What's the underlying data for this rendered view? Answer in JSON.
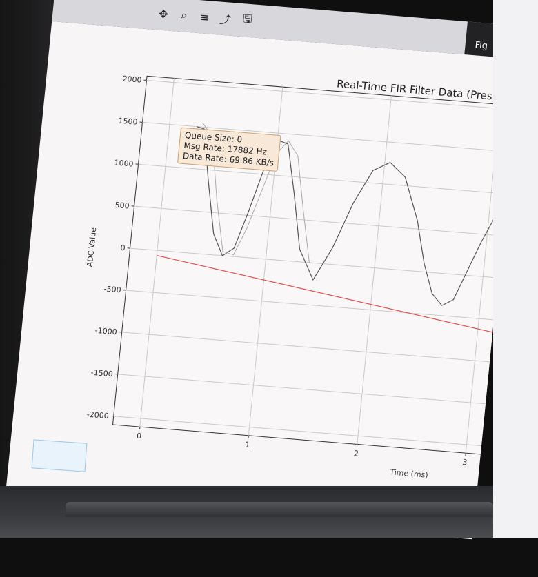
{
  "window": {
    "figure_label": "Fig",
    "toolbar_icons": [
      "pan-icon",
      "zoom-icon",
      "configure-icon",
      "edit-axis-icon",
      "save-icon"
    ]
  },
  "info_box": {
    "queue_size": "Queue Size: 0",
    "msg_rate": "Msg Rate: 17882 Hz",
    "data_rate": "Data Rate: 69.86 KB/s"
  },
  "taskbar_tag": {
    "text": ""
  },
  "chart_data": {
    "type": "line",
    "title": "Real-Time FIR Filter Data (Pres",
    "xlabel": "Time (ms)",
    "ylabel": "ADC Value",
    "xlim": [
      -0.25,
      3.2
    ],
    "ylim": [
      -2100,
      2050
    ],
    "x_ticks": [
      0,
      1,
      2,
      3
    ],
    "y_ticks": [
      2000,
      1500,
      1000,
      500,
      0,
      -500,
      -1000,
      -1500,
      -2000
    ],
    "grid": true,
    "series": [
      {
        "color": "#555555",
        "x": [
          0.25,
          0.32,
          0.4,
          0.5,
          0.6,
          0.7,
          0.8,
          0.9,
          1.0,
          1.1,
          1.2,
          1.3,
          1.45,
          1.6,
          1.75,
          1.9,
          2.05,
          2.2,
          2.35,
          2.45,
          2.55,
          2.65,
          2.75,
          2.85,
          2.95,
          3.05,
          3.15
        ],
        "y": [
          1500,
          1480,
          900,
          250,
          0,
          100,
          550,
          1050,
          1420,
          1380,
          800,
          150,
          -200,
          200,
          750,
          1150,
          1260,
          1100,
          600,
          100,
          -250,
          -380,
          -300,
          50,
          400,
          700,
          900
        ]
      },
      {
        "color": "#aaaaaa",
        "x": [
          0.3,
          0.4,
          0.5,
          0.6,
          0.7,
          0.8,
          0.9,
          1.0,
          1.1,
          1.2,
          1.3,
          1.4
        ],
        "y": [
          1550,
          1400,
          650,
          50,
          20,
          350,
          800,
          1250,
          1420,
          1250,
          600,
          0
        ]
      },
      {
        "color": "#e05050",
        "x": [
          0.0,
          3.2
        ],
        "y": [
          -60,
          -660
        ]
      }
    ]
  }
}
